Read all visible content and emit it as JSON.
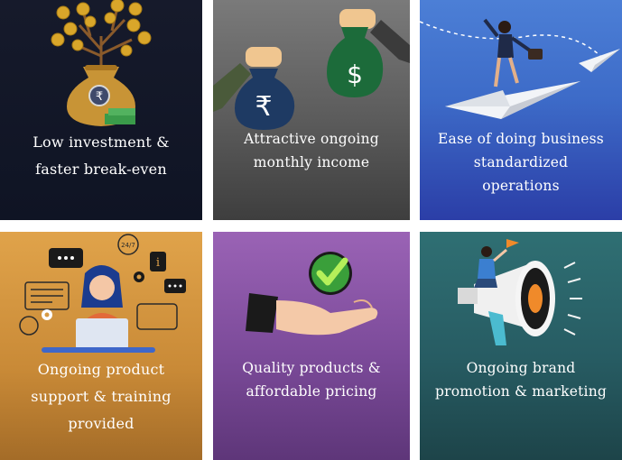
{
  "cards": [
    {
      "line1": "Low investment &",
      "line2": "faster break-even",
      "line3": ""
    },
    {
      "line1": "Attractive ongoing",
      "line2": "monthly income",
      "line3": ""
    },
    {
      "line1": "Ease of doing business",
      "line2": "standardized",
      "line3": "operations"
    },
    {
      "line1": "Ongoing product",
      "line2": "support & training",
      "line3": "provided"
    },
    {
      "line1": "Quality products &",
      "line2": "affordable pricing",
      "line3": ""
    },
    {
      "line1": "Ongoing brand",
      "line2": "promotion & marketing",
      "line3": ""
    }
  ],
  "icons": {
    "rupee_symbol": "₹",
    "dollar_symbol": "$",
    "support_badge": "24/7",
    "info_badge": "i"
  }
}
